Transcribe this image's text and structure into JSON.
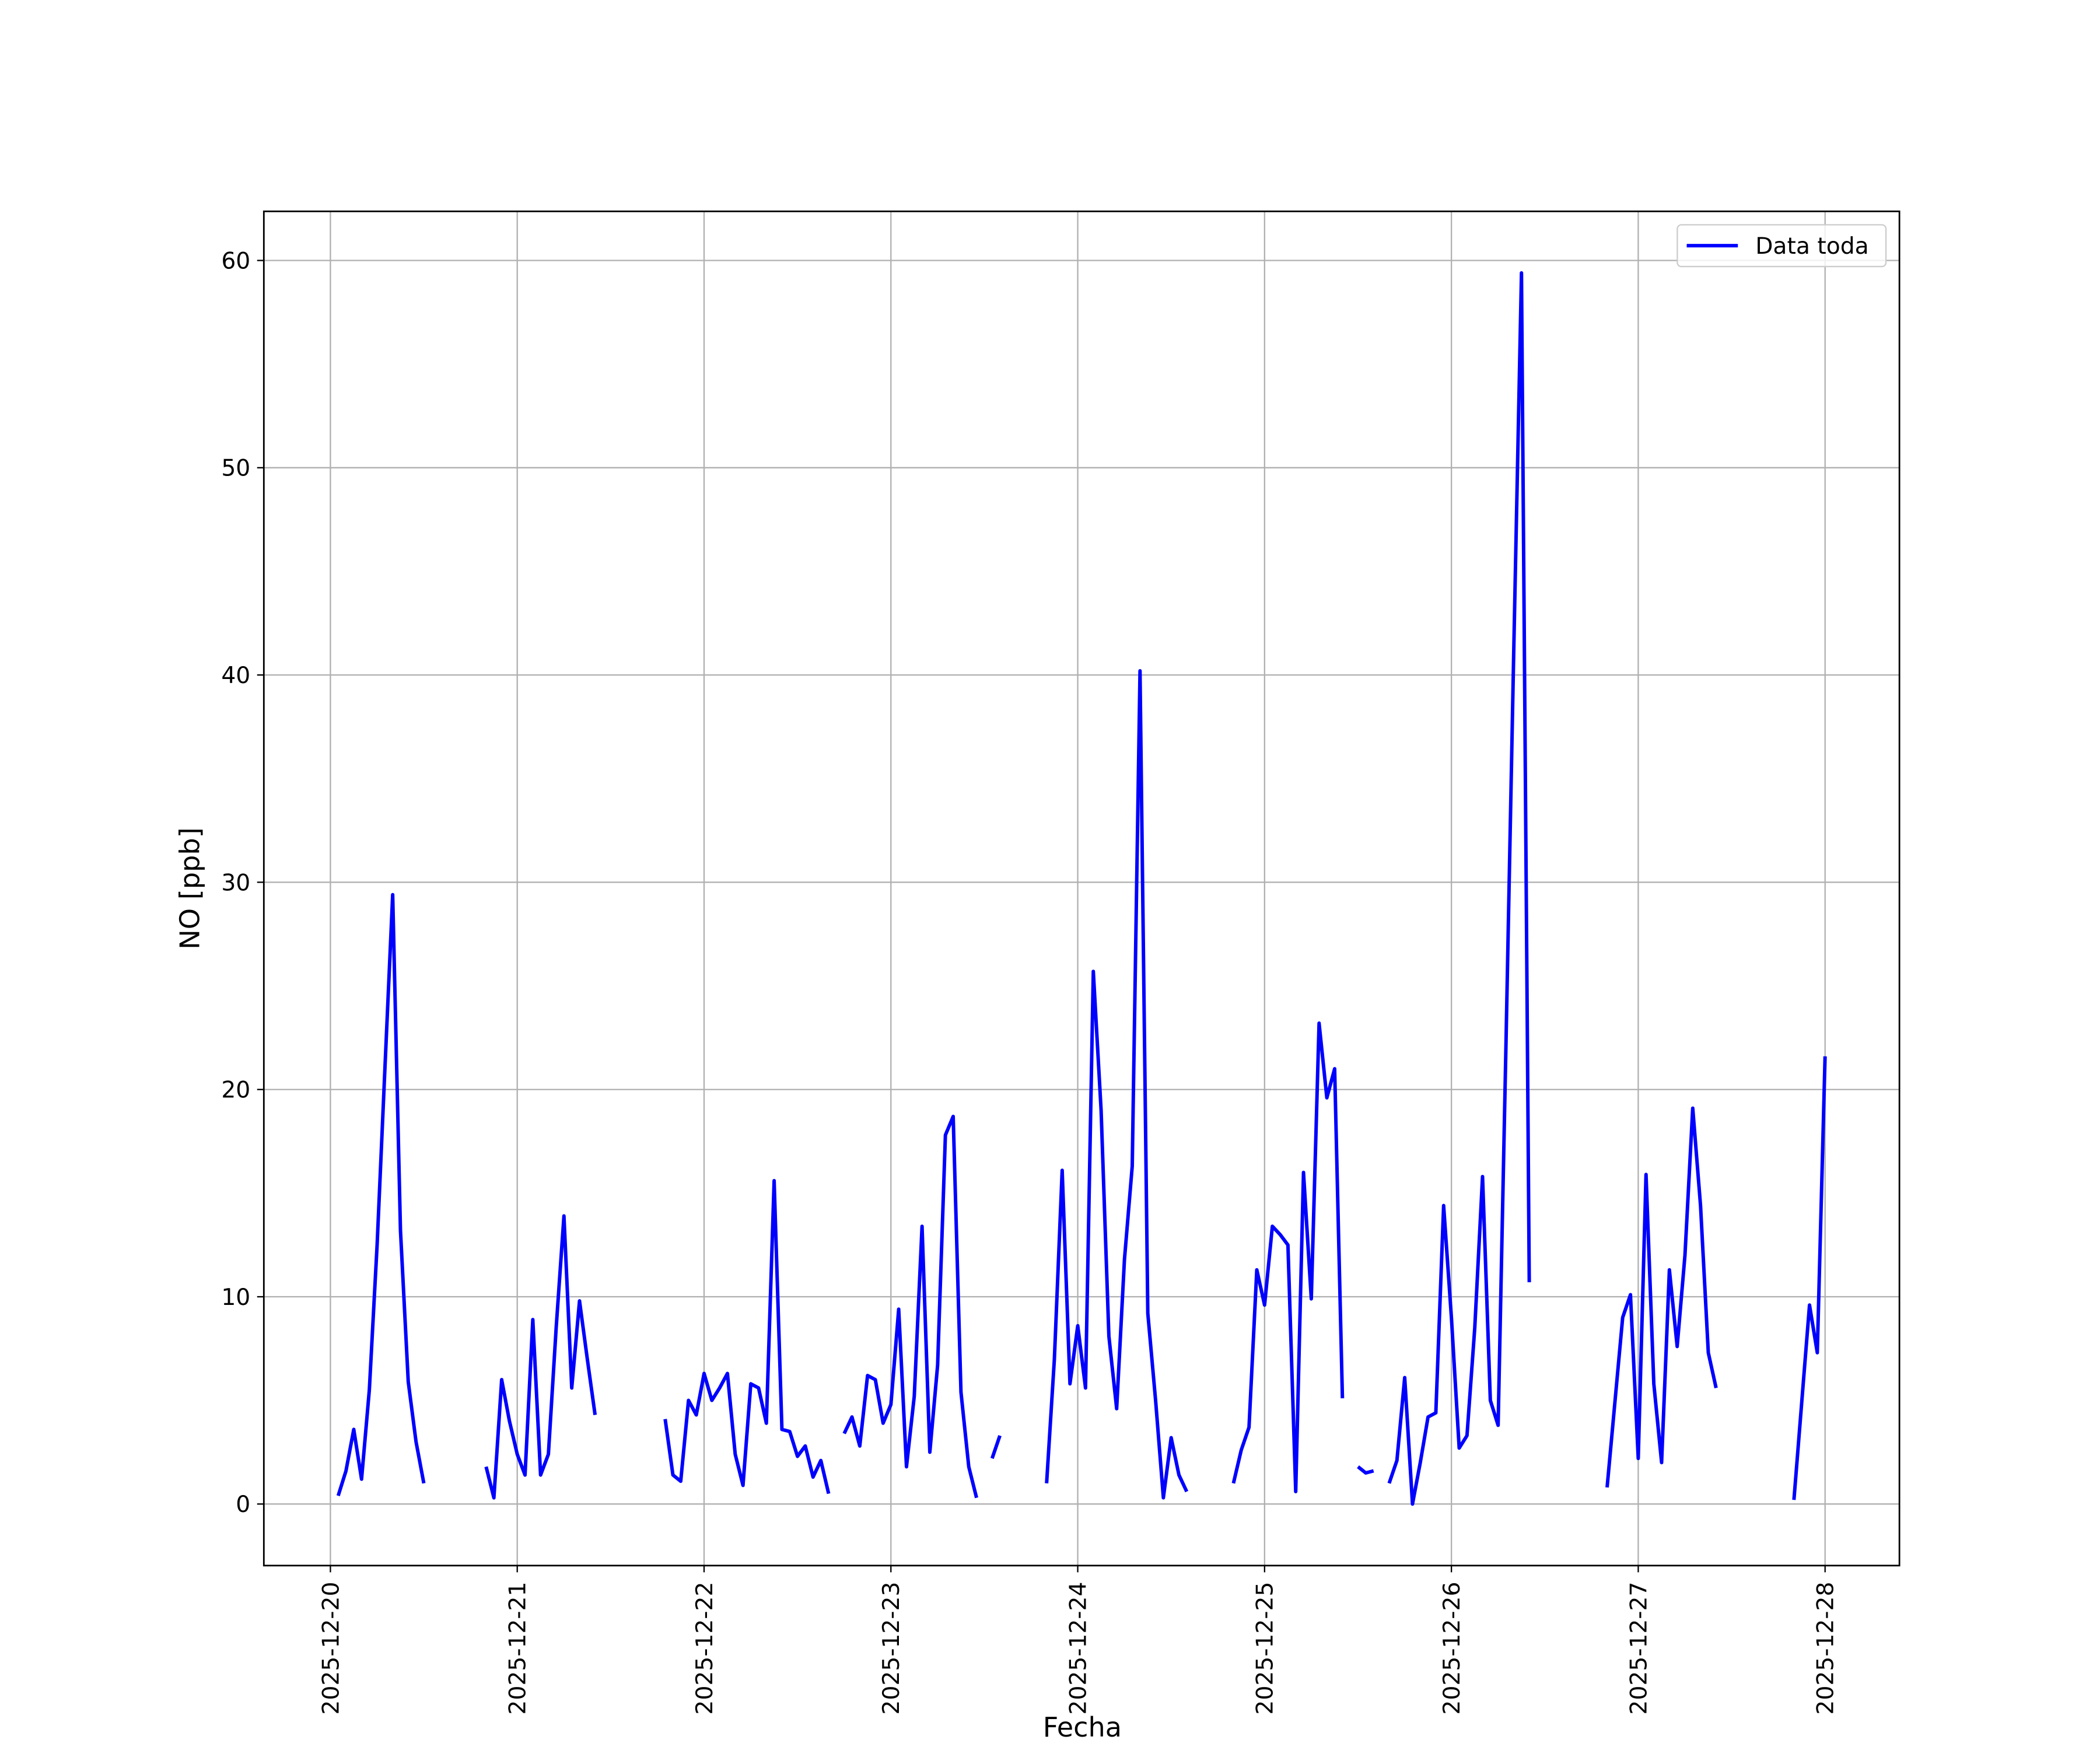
{
  "chart_data": {
    "type": "line",
    "xlabel": "Fecha",
    "ylabel": "NO [ppb]",
    "x": [
      "2025-12-20 01:00",
      "2025-12-20 02:00",
      "2025-12-20 03:00",
      "2025-12-20 04:00",
      "2025-12-20 05:00",
      "2025-12-20 06:00",
      "2025-12-20 07:00",
      "2025-12-20 08:00",
      "2025-12-20 09:00",
      "2025-12-20 10:00",
      "2025-12-20 11:00",
      "2025-12-20 12:00",
      "2025-12-20 13:00",
      "2025-12-20 20:00",
      "2025-12-20 21:00",
      "2025-12-20 22:00",
      "2025-12-20 23:00",
      "2025-12-21 00:00",
      "2025-12-21 01:00",
      "2025-12-21 02:00",
      "2025-12-21 03:00",
      "2025-12-21 04:00",
      "2025-12-21 05:00",
      "2025-12-21 06:00",
      "2025-12-21 07:00",
      "2025-12-21 08:00",
      "2025-12-21 09:00",
      "2025-12-21 10:00",
      "2025-12-21 11:00",
      "2025-12-21 19:00",
      "2025-12-21 20:00",
      "2025-12-21 21:00",
      "2025-12-21 22:00",
      "2025-12-21 23:00",
      "2025-12-22 00:00",
      "2025-12-22 01:00",
      "2025-12-22 02:00",
      "2025-12-22 03:00",
      "2025-12-22 04:00",
      "2025-12-22 05:00",
      "2025-12-22 06:00",
      "2025-12-22 07:00",
      "2025-12-22 08:00",
      "2025-12-22 09:00",
      "2025-12-22 10:00",
      "2025-12-22 11:00",
      "2025-12-22 12:00",
      "2025-12-22 13:00",
      "2025-12-22 14:00",
      "2025-12-22 15:00",
      "2025-12-22 16:00",
      "2025-12-22 17:00",
      "2025-12-22 18:00",
      "2025-12-22 19:00",
      "2025-12-22 20:00",
      "2025-12-22 21:00",
      "2025-12-22 22:00",
      "2025-12-22 23:00",
      "2025-12-23 00:00",
      "2025-12-23 01:00",
      "2025-12-23 02:00",
      "2025-12-23 03:00",
      "2025-12-23 04:00",
      "2025-12-23 05:00",
      "2025-12-23 06:00",
      "2025-12-23 07:00",
      "2025-12-23 08:00",
      "2025-12-23 09:00",
      "2025-12-23 10:00",
      "2025-12-23 11:00",
      "2025-12-23 12:00",
      "2025-12-23 13:00",
      "2025-12-23 14:00",
      "2025-12-23 15:00",
      "2025-12-23 20:00",
      "2025-12-23 21:00",
      "2025-12-23 22:00",
      "2025-12-23 23:00",
      "2025-12-24 00:00",
      "2025-12-24 01:00",
      "2025-12-24 02:00",
      "2025-12-24 03:00",
      "2025-12-24 04:00",
      "2025-12-24 05:00",
      "2025-12-24 06:00",
      "2025-12-24 07:00",
      "2025-12-24 08:00",
      "2025-12-24 09:00",
      "2025-12-24 10:00",
      "2025-12-24 11:00",
      "2025-12-24 12:00",
      "2025-12-24 13:00",
      "2025-12-24 14:00",
      "2025-12-24 15:00",
      "2025-12-24 20:00",
      "2025-12-24 21:00",
      "2025-12-24 22:00",
      "2025-12-24 23:00",
      "2025-12-25 00:00",
      "2025-12-25 01:00",
      "2025-12-25 02:00",
      "2025-12-25 03:00",
      "2025-12-25 04:00",
      "2025-12-25 05:00",
      "2025-12-25 06:00",
      "2025-12-25 07:00",
      "2025-12-25 08:00",
      "2025-12-25 09:00",
      "2025-12-25 10:00",
      "2025-12-25 11:00",
      "2025-12-25 12:00",
      "2025-12-25 13:00",
      "2025-12-25 14:00",
      "2025-12-25 15:00",
      "2025-12-25 16:00",
      "2025-12-25 17:00",
      "2025-12-25 18:00",
      "2025-12-25 19:00",
      "2025-12-25 20:00",
      "2025-12-25 21:00",
      "2025-12-25 22:00",
      "2025-12-25 23:00",
      "2025-12-26 00:00",
      "2025-12-26 01:00",
      "2025-12-26 02:00",
      "2025-12-26 03:00",
      "2025-12-26 04:00",
      "2025-12-26 05:00",
      "2025-12-26 06:00",
      "2025-12-26 07:00",
      "2025-12-26 08:00",
      "2025-12-26 09:00",
      "2025-12-26 10:00",
      "2025-12-26 11:00",
      "2025-12-26 20:00",
      "2025-12-26 21:00",
      "2025-12-26 22:00",
      "2025-12-26 23:00",
      "2025-12-27 00:00",
      "2025-12-27 01:00",
      "2025-12-27 02:00",
      "2025-12-27 03:00",
      "2025-12-27 04:00",
      "2025-12-27 05:00",
      "2025-12-27 06:00",
      "2025-12-27 07:00",
      "2025-12-27 08:00",
      "2025-12-27 09:00",
      "2025-12-27 10:00",
      "2025-12-27 11:00",
      "2025-12-27 20:00",
      "2025-12-27 21:00",
      "2025-12-27 22:00",
      "2025-12-27 23:00",
      "2025-12-28 00:00"
    ],
    "series": [
      {
        "name": "Data toda",
        "color": "#0000ff",
        "values": [
          0.4,
          1.6,
          3.6,
          1.2,
          5.5,
          12.5,
          21,
          29.4,
          13.2,
          5.9,
          3.0,
          1.0,
          null,
          1.8,
          0.3,
          6.0,
          4.0,
          2.4,
          1.4,
          8.9,
          1.4,
          2.4,
          8.5,
          13.9,
          5.6,
          9.8,
          7.0,
          4.3,
          null,
          4.1,
          1.4,
          1.1,
          5.0,
          4.3,
          6.3,
          5.0,
          5.6,
          6.3,
          2.4,
          0.9,
          5.8,
          5.6,
          3.9,
          15.6,
          3.6,
          3.5,
          2.3,
          2.8,
          1.3,
          2.1,
          0.5,
          null,
          3.4,
          4.2,
          2.8,
          6.2,
          6.0,
          3.9,
          4.8,
          9.4,
          1.8,
          5.2,
          13.4,
          2.5,
          6.7,
          17.8,
          18.7,
          5.4,
          1.8,
          0.3,
          null,
          2.2,
          3.3,
          null,
          1.0,
          7.0,
          16.1,
          5.8,
          8.6,
          5.6,
          25.7,
          19.0,
          8.1,
          4.6,
          11.8,
          16.3,
          40.2,
          9.2,
          5.0,
          0.3,
          3.2,
          1.4,
          0.6,
          null,
          1.0,
          2.6,
          3.7,
          11.3,
          9.6,
          13.4,
          13.0,
          12.5,
          0.6,
          16.0,
          9.9,
          23.2,
          19.6,
          21.0,
          5.1,
          null,
          1.8,
          1.5,
          1.6,
          null,
          1.0,
          2.1,
          6.1,
          0.0,
          2.0,
          4.2,
          4.4,
          14.4,
          9.0,
          2.7,
          3.3,
          8.5,
          15.8,
          5.0,
          3.8,
          22,
          41,
          59.4,
          10.7,
          null,
          0.8,
          4.9,
          9.0,
          10.1,
          2.2,
          15.9,
          5.8,
          2.0,
          11.3,
          7.6,
          12.0,
          19.1,
          14.4,
          7.3,
          5.6,
          null,
          0.2,
          4.9,
          9.6,
          7.3,
          21.6
        ]
      }
    ],
    "xlim": [
      "2025-12-19 15:27",
      "2025-12-28 09:33"
    ],
    "xticks": [
      "2025-12-20",
      "2025-12-21",
      "2025-12-22",
      "2025-12-23",
      "2025-12-24",
      "2025-12-25",
      "2025-12-26",
      "2025-12-27",
      "2025-12-28"
    ],
    "ylim": [
      -2.97,
      62.37
    ],
    "yticks": [
      0,
      10,
      20,
      30,
      40,
      50,
      60
    ],
    "grid": true,
    "legend": "upper right"
  }
}
